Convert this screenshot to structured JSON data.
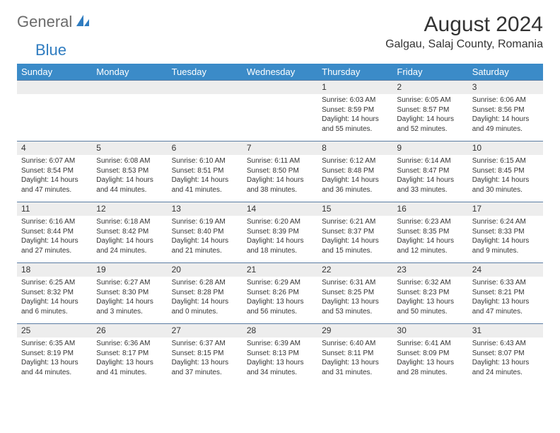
{
  "logo": {
    "general": "General",
    "blue": "Blue"
  },
  "title": "August 2024",
  "location": "Galgau, Salaj County, Romania",
  "colors": {
    "header_bg": "#3b8bc8",
    "header_text": "#ffffff",
    "daynum_bg": "#ededed",
    "border_top": "#5b7da3",
    "text": "#333333",
    "logo_gray": "#6b6b6b",
    "logo_blue": "#2f7cc0",
    "page_bg": "#ffffff"
  },
  "day_labels": [
    "Sunday",
    "Monday",
    "Tuesday",
    "Wednesday",
    "Thursday",
    "Friday",
    "Saturday"
  ],
  "weeks": [
    [
      null,
      null,
      null,
      null,
      {
        "n": "1",
        "sunrise": "6:03 AM",
        "sunset": "8:59 PM",
        "dl": "14 hours and 55 minutes."
      },
      {
        "n": "2",
        "sunrise": "6:05 AM",
        "sunset": "8:57 PM",
        "dl": "14 hours and 52 minutes."
      },
      {
        "n": "3",
        "sunrise": "6:06 AM",
        "sunset": "8:56 PM",
        "dl": "14 hours and 49 minutes."
      }
    ],
    [
      {
        "n": "4",
        "sunrise": "6:07 AM",
        "sunset": "8:54 PM",
        "dl": "14 hours and 47 minutes."
      },
      {
        "n": "5",
        "sunrise": "6:08 AM",
        "sunset": "8:53 PM",
        "dl": "14 hours and 44 minutes."
      },
      {
        "n": "6",
        "sunrise": "6:10 AM",
        "sunset": "8:51 PM",
        "dl": "14 hours and 41 minutes."
      },
      {
        "n": "7",
        "sunrise": "6:11 AM",
        "sunset": "8:50 PM",
        "dl": "14 hours and 38 minutes."
      },
      {
        "n": "8",
        "sunrise": "6:12 AM",
        "sunset": "8:48 PM",
        "dl": "14 hours and 36 minutes."
      },
      {
        "n": "9",
        "sunrise": "6:14 AM",
        "sunset": "8:47 PM",
        "dl": "14 hours and 33 minutes."
      },
      {
        "n": "10",
        "sunrise": "6:15 AM",
        "sunset": "8:45 PM",
        "dl": "14 hours and 30 minutes."
      }
    ],
    [
      {
        "n": "11",
        "sunrise": "6:16 AM",
        "sunset": "8:44 PM",
        "dl": "14 hours and 27 minutes."
      },
      {
        "n": "12",
        "sunrise": "6:18 AM",
        "sunset": "8:42 PM",
        "dl": "14 hours and 24 minutes."
      },
      {
        "n": "13",
        "sunrise": "6:19 AM",
        "sunset": "8:40 PM",
        "dl": "14 hours and 21 minutes."
      },
      {
        "n": "14",
        "sunrise": "6:20 AM",
        "sunset": "8:39 PM",
        "dl": "14 hours and 18 minutes."
      },
      {
        "n": "15",
        "sunrise": "6:21 AM",
        "sunset": "8:37 PM",
        "dl": "14 hours and 15 minutes."
      },
      {
        "n": "16",
        "sunrise": "6:23 AM",
        "sunset": "8:35 PM",
        "dl": "14 hours and 12 minutes."
      },
      {
        "n": "17",
        "sunrise": "6:24 AM",
        "sunset": "8:33 PM",
        "dl": "14 hours and 9 minutes."
      }
    ],
    [
      {
        "n": "18",
        "sunrise": "6:25 AM",
        "sunset": "8:32 PM",
        "dl": "14 hours and 6 minutes."
      },
      {
        "n": "19",
        "sunrise": "6:27 AM",
        "sunset": "8:30 PM",
        "dl": "14 hours and 3 minutes."
      },
      {
        "n": "20",
        "sunrise": "6:28 AM",
        "sunset": "8:28 PM",
        "dl": "14 hours and 0 minutes."
      },
      {
        "n": "21",
        "sunrise": "6:29 AM",
        "sunset": "8:26 PM",
        "dl": "13 hours and 56 minutes."
      },
      {
        "n": "22",
        "sunrise": "6:31 AM",
        "sunset": "8:25 PM",
        "dl": "13 hours and 53 minutes."
      },
      {
        "n": "23",
        "sunrise": "6:32 AM",
        "sunset": "8:23 PM",
        "dl": "13 hours and 50 minutes."
      },
      {
        "n": "24",
        "sunrise": "6:33 AM",
        "sunset": "8:21 PM",
        "dl": "13 hours and 47 minutes."
      }
    ],
    [
      {
        "n": "25",
        "sunrise": "6:35 AM",
        "sunset": "8:19 PM",
        "dl": "13 hours and 44 minutes."
      },
      {
        "n": "26",
        "sunrise": "6:36 AM",
        "sunset": "8:17 PM",
        "dl": "13 hours and 41 minutes."
      },
      {
        "n": "27",
        "sunrise": "6:37 AM",
        "sunset": "8:15 PM",
        "dl": "13 hours and 37 minutes."
      },
      {
        "n": "28",
        "sunrise": "6:39 AM",
        "sunset": "8:13 PM",
        "dl": "13 hours and 34 minutes."
      },
      {
        "n": "29",
        "sunrise": "6:40 AM",
        "sunset": "8:11 PM",
        "dl": "13 hours and 31 minutes."
      },
      {
        "n": "30",
        "sunrise": "6:41 AM",
        "sunset": "8:09 PM",
        "dl": "13 hours and 28 minutes."
      },
      {
        "n": "31",
        "sunrise": "6:43 AM",
        "sunset": "8:07 PM",
        "dl": "13 hours and 24 minutes."
      }
    ]
  ],
  "labels": {
    "sunrise": "Sunrise: ",
    "sunset": "Sunset: ",
    "daylight": "Daylight: "
  }
}
